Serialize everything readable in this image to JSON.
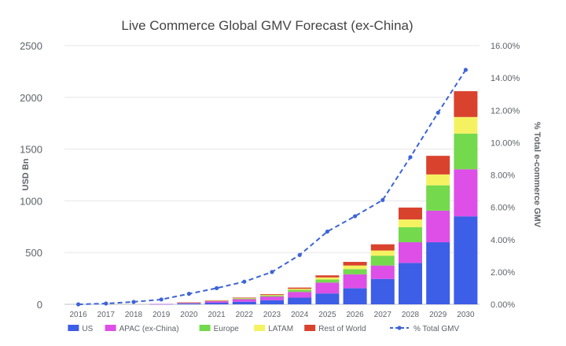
{
  "chart_data": {
    "type": "bar",
    "stacked": true,
    "title": "Live Commerce Global GMV Forecast (ex-China)",
    "ylabel": "USD Bn",
    "y2label": "% Total e-commerce GMV",
    "ylim": [
      0,
      2500
    ],
    "y2lim": [
      0,
      16
    ],
    "grid": true,
    "legend_position": "bottom",
    "categories": [
      "2016",
      "2017",
      "2018",
      "2019",
      "2020",
      "2021",
      "2022",
      "2023",
      "2024",
      "2025",
      "2026",
      "2027",
      "2028",
      "2029",
      "2030"
    ],
    "y_ticks": [
      "0",
      "500",
      "1000",
      "1500",
      "2000",
      "2500"
    ],
    "y2_ticks": [
      "0.00%",
      "2.00%",
      "4.00%",
      "6.00%",
      "8.00%",
      "10.00%",
      "12.00%",
      "14.00%",
      "16.00%"
    ],
    "series": [
      {
        "name": "US",
        "color": "#3d5ee6",
        "values": [
          0,
          0,
          0,
          2,
          8,
          15,
          25,
          40,
          65,
          105,
          155,
          245,
          400,
          600,
          850
        ]
      },
      {
        "name": "APAC (ex-China)",
        "color": "#dd4fe6",
        "values": [
          0,
          0,
          0,
          1,
          7,
          15,
          25,
          35,
          55,
          105,
          135,
          130,
          200,
          305,
          455
        ]
      },
      {
        "name": "Europe",
        "color": "#74d94d",
        "values": [
          0,
          0,
          0,
          0,
          2,
          4,
          7,
          10,
          20,
          30,
          50,
          95,
          145,
          245,
          345
        ]
      },
      {
        "name": "LATAM",
        "color": "#f5f262",
        "values": [
          0,
          0,
          0,
          0,
          1,
          2,
          3,
          5,
          10,
          20,
          35,
          50,
          75,
          105,
          160
        ]
      },
      {
        "name": "Rest of World",
        "color": "#d9432e",
        "values": [
          0,
          0,
          0,
          0,
          1,
          3,
          5,
          8,
          12,
          20,
          35,
          60,
          115,
          180,
          250
        ]
      }
    ],
    "line_series": {
      "name": "% Total GMV",
      "color": "#3d64d8",
      "axis": "right",
      "values": [
        0.0,
        0.05,
        0.15,
        0.3,
        0.65,
        1.0,
        1.4,
        2.0,
        3.05,
        4.5,
        5.45,
        6.45,
        9.1,
        11.85,
        14.5
      ]
    }
  }
}
